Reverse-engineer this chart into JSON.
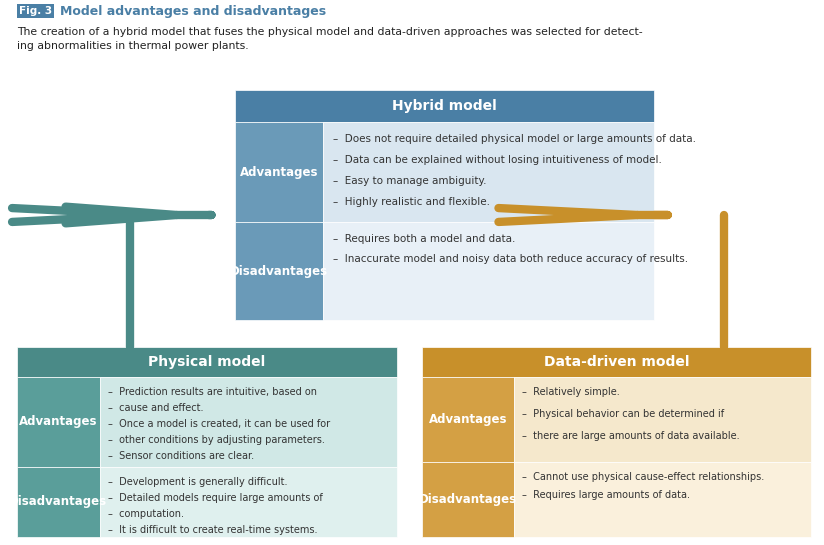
{
  "fig_label": "Fig. 3",
  "fig_title": "Model advantages and disadvantages",
  "description": "The creation of a hybrid model that fuses the physical model and data-driven approaches was selected for detect-\ning abnormalities in thermal power plants.",
  "hybrid_title": "Hybrid model",
  "hybrid_adv_label": "Advantages",
  "hybrid_adv_text": "Does not require detailed physical model or large amounts of data.\nData can be explained without losing intuitiveness of model.\nEasy to manage ambiguity.\nHighly realistic and flexible.",
  "hybrid_dis_label": "Disadvantages",
  "hybrid_dis_text": "Requires both a model and data.\nInaccurate model and noisy data both reduce accuracy of results.",
  "physical_title": "Physical model",
  "physical_adv_label": "Advantages",
  "physical_adv_text": "Prediction results are intuitive, based on\ncause and effect.\nOnce a model is created, it can be used for\nother conditions by adjusting parameters.\nSensor conditions are clear.",
  "physical_dis_label": "Disadvantages",
  "physical_dis_text": "Development is generally difficult.\nDetailed models require large amounts of\ncomputation.\nIt is difficult to create real-time systems.",
  "data_title": "Data-driven model",
  "data_adv_label": "Advantages",
  "data_adv_text": "Relatively simple.\nPhysical behavior can be determined if\nthere are large amounts of data available.",
  "data_dis_label": "Disadvantages",
  "data_dis_text": "Cannot use physical cause-effect relationships.\nRequires large amounts of data.",
  "color_hybrid_header": "#4a7fa5",
  "color_hybrid_adv_label": "#6a9ab8",
  "color_hybrid_adv_bg": "#d9e6f0",
  "color_hybrid_dis_label": "#6a9ab8",
  "color_hybrid_dis_bg": "#e8f0f7",
  "color_physical_header": "#4a8a87",
  "color_physical_adv_label": "#5a9e9a",
  "color_physical_adv_bg": "#d0e8e6",
  "color_physical_dis_label": "#5a9e9a",
  "color_physical_dis_bg": "#dff0ee",
  "color_data_header": "#c8902a",
  "color_data_adv_label": "#d4a044",
  "color_data_adv_bg": "#f5e8cc",
  "color_data_dis_label": "#d4a044",
  "color_data_dis_bg": "#faf0dc",
  "color_arrow_physical": "#4a8a87",
  "color_arrow_data": "#c8902a",
  "color_fig_label_bg": "#4a7fa5",
  "color_fig_title": "#4a7fa5",
  "label_text_color": "#ffffff",
  "body_text_color": "#333333"
}
